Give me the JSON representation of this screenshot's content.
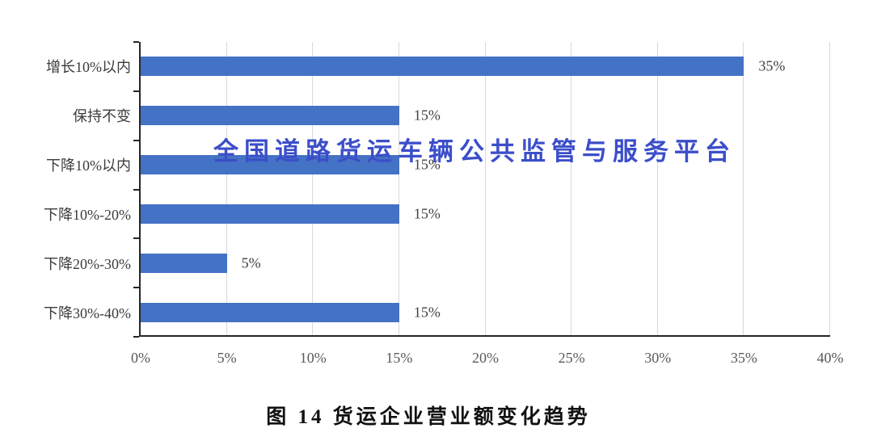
{
  "watermark": {
    "text": "全国道路货运车辆公共监管与服务平台",
    "color": "#3B4EC9"
  },
  "caption": {
    "text": "图 14 货运企业营业额变化趋势"
  },
  "chart_data": {
    "type": "bar",
    "orientation": "horizontal",
    "title": "图 14 货运企业营业额变化趋势",
    "xlabel": "",
    "ylabel": "",
    "categories": [
      "增长10%以内",
      "保持不变",
      "下降10%以内",
      "下降10%-20%",
      "下降20%-30%",
      "下降30%-40%"
    ],
    "values": [
      35,
      15,
      15,
      15,
      5,
      15
    ],
    "value_labels": [
      "35%",
      "15%",
      "15%",
      "15%",
      "5%",
      "15%"
    ],
    "x_ticks": [
      "0%",
      "5%",
      "10%",
      "15%",
      "20%",
      "25%",
      "30%",
      "35%",
      "40%"
    ],
    "x_tick_values": [
      0,
      5,
      10,
      15,
      20,
      25,
      30,
      35,
      40
    ],
    "xlim": [
      0,
      40
    ],
    "grid": true,
    "legend": "none",
    "bar_color": "#4472C4",
    "gridline_color": "#D9D9D9",
    "axis_color": "#262626"
  }
}
